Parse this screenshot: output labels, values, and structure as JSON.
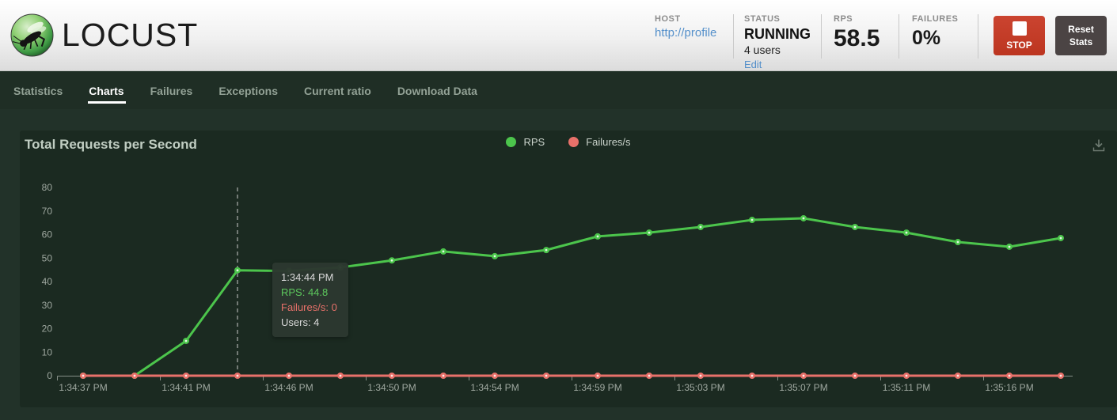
{
  "header": {
    "logo_text": "LOCUST",
    "host": {
      "label": "HOST",
      "value": "http://profile"
    },
    "status": {
      "label": "STATUS",
      "value": "RUNNING",
      "users": "4 users",
      "edit": "Edit"
    },
    "rps": {
      "label": "RPS",
      "value": "58.5"
    },
    "failures": {
      "label": "FAILURES",
      "value": "0%"
    },
    "stop_button": "STOP",
    "reset_button": "Reset Stats"
  },
  "nav": {
    "tabs": [
      {
        "label": "Statistics",
        "active": false
      },
      {
        "label": "Charts",
        "active": true
      },
      {
        "label": "Failures",
        "active": false
      },
      {
        "label": "Exceptions",
        "active": false
      },
      {
        "label": "Current ratio",
        "active": false
      },
      {
        "label": "Download Data",
        "active": false
      }
    ]
  },
  "chart": {
    "title": "Total Requests per Second",
    "tooltip_labels": {
      "rps": "RPS: ",
      "failures": "Failures/s: ",
      "users": "Users: "
    }
  },
  "chart_data": {
    "type": "line",
    "title": "Total Requests per Second",
    "xlabel": "",
    "ylabel": "",
    "ylim": [
      0,
      80
    ],
    "yticks": [
      0,
      10,
      20,
      30,
      40,
      50,
      60,
      70,
      80
    ],
    "grid": false,
    "legend_position": "top-center",
    "x_tick_labels": [
      "1:34:37 PM",
      "1:34:41 PM",
      "1:34:46 PM",
      "1:34:50 PM",
      "1:34:54 PM",
      "1:34:59 PM",
      "1:35:03 PM",
      "1:35:07 PM",
      "1:35:11 PM",
      "1:35:16 PM"
    ],
    "x_tick_indices": [
      0,
      2,
      4,
      6,
      8,
      10,
      12,
      14,
      16,
      18
    ],
    "series": [
      {
        "name": "RPS",
        "color": "#4cc54c",
        "dot_center": "#e2f6e2",
        "values": [
          0,
          0,
          14.8,
          44.8,
          44.5,
          46.0,
          49.0,
          52.8,
          50.8,
          53.4,
          59.2,
          60.8,
          63.2,
          66.2,
          66.9,
          63.2,
          60.8,
          56.8,
          54.8,
          58.5
        ]
      },
      {
        "name": "Failures/s",
        "color": "#e8716a",
        "dot_center": "#ffe9e6",
        "values": [
          0,
          0,
          0,
          0,
          0,
          0,
          0,
          0,
          0,
          0,
          0,
          0,
          0,
          0,
          0,
          0,
          0,
          0,
          0,
          0
        ]
      }
    ],
    "crosshair_index": 3,
    "tooltip": {
      "time": "1:34:44 PM",
      "rps": 44.8,
      "failures": 0,
      "users": 4
    }
  }
}
